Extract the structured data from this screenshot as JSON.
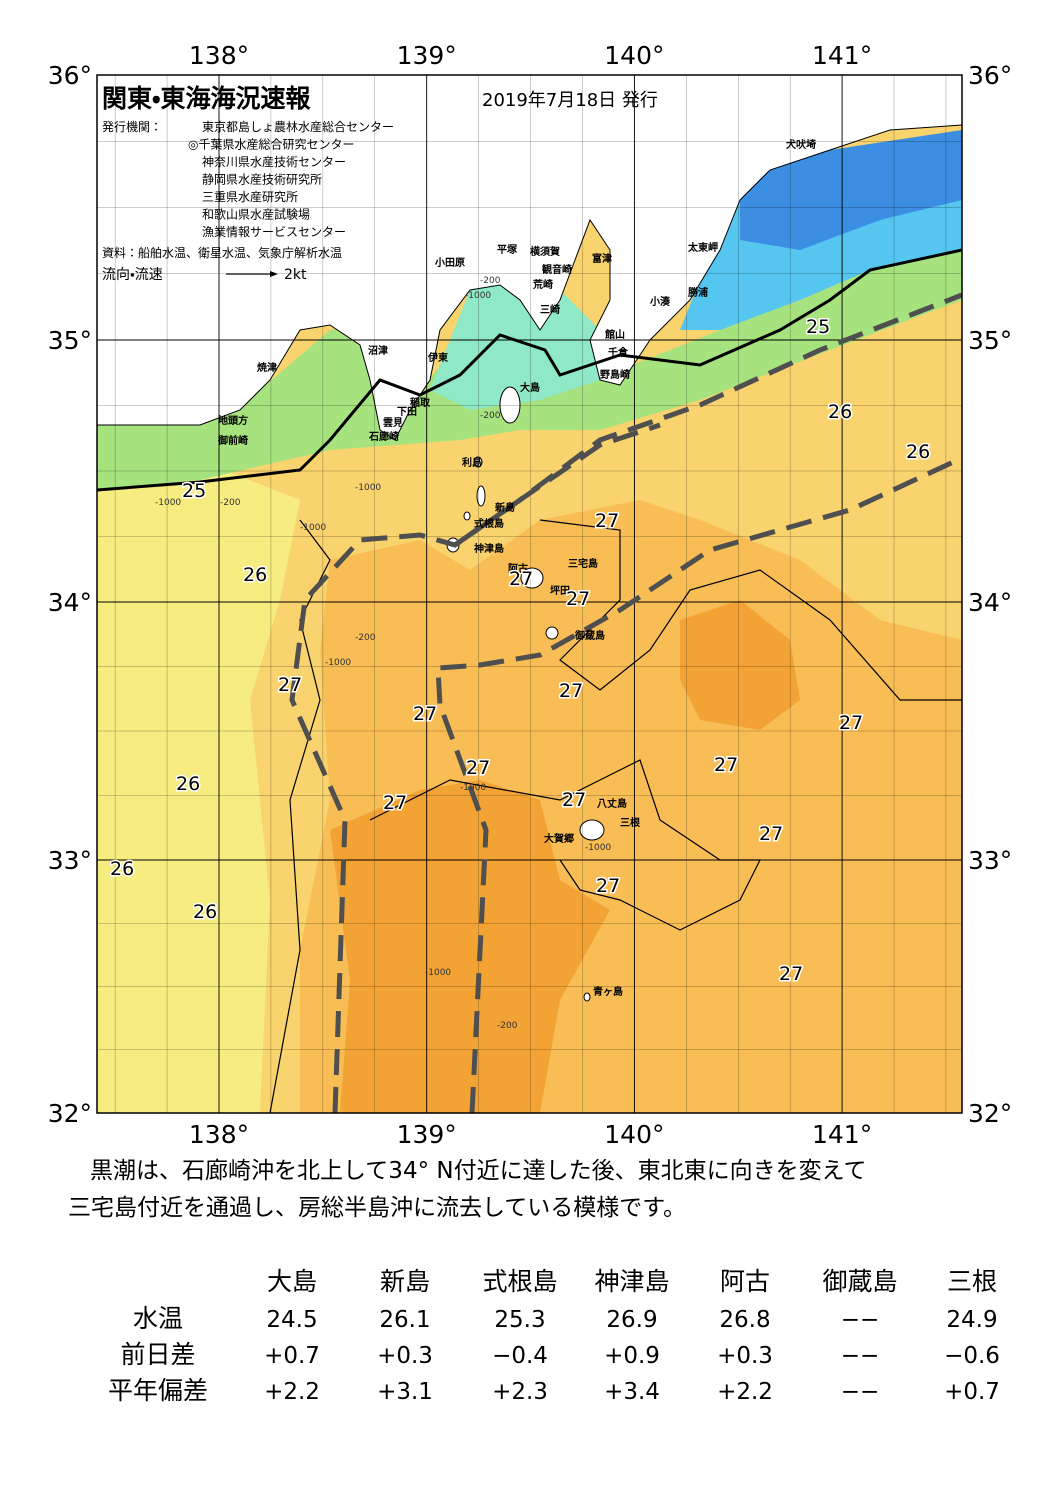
{
  "header": {
    "title": "関東・東海海況速報",
    "date": "2019年7月18日 発行",
    "issuer_label": "発行機関：",
    "issuers": [
      "東京都島しょ農林水産総合センター",
      "◎千葉県水産総合研究センター",
      "神奈川県水産技術センター",
      "静岡県水産技術研究所",
      "三重県水産研究所",
      "和歌山県水産試験場",
      "漁業情報サービスセンター"
    ],
    "source": "資料：船舶水温、衛星水温、気象庁解析水温",
    "flow_label": "流向・流速",
    "flow_scale": "2kt"
  },
  "map": {
    "lon_ticks": [
      {
        "value": 138,
        "label": "138°"
      },
      {
        "value": 139,
        "label": "139°"
      },
      {
        "value": 140,
        "label": "140°"
      },
      {
        "value": 141,
        "label": "141°"
      }
    ],
    "lat_ticks": [
      {
        "value": 36,
        "label": "36°"
      },
      {
        "value": 35,
        "label": "35°"
      },
      {
        "value": 34,
        "label": "34°"
      },
      {
        "value": 33,
        "label": "33°"
      },
      {
        "value": 32,
        "label": "32°"
      }
    ],
    "places": [
      "犬吠埼",
      "太東岬",
      "勝浦",
      "小湊",
      "富津",
      "館山",
      "千倉",
      "野島崎",
      "横須賀",
      "観音崎",
      "荒崎",
      "三崎",
      "平塚",
      "小田原",
      "沼津",
      "伊東",
      "焼津",
      "稲取",
      "下田",
      "雲見",
      "石廊崎",
      "地頭方",
      "御前崎",
      "大島",
      "利島",
      "新島",
      "式根島",
      "神津島",
      "三宅島",
      "阿古",
      "坪田",
      "御蔵島",
      "八丈島",
      "三根",
      "大賀郷",
      "青ヶ島"
    ],
    "contour_labels": [
      25,
      25,
      26,
      26,
      26,
      26,
      26,
      26,
      27,
      27,
      27,
      27,
      27,
      27,
      27,
      27,
      27,
      27,
      27,
      27,
      27,
      27
    ],
    "depth_labels": [
      -200,
      -1000,
      -1000,
      -200,
      -200,
      -1000,
      -200,
      -1000,
      -1000,
      -1000,
      -1000,
      -200,
      -1000
    ]
  },
  "description": [
    "黒潮は、石廊崎沖を北上して34° N付近に達した後、東北東に向きを変えて",
    "三宅島付近を通過し、房総半島沖に流去している模様です。"
  ],
  "table": {
    "columns": [
      "大島",
      "新島",
      "式根島",
      "神津島",
      "阿古",
      "御蔵島",
      "三根"
    ],
    "rows": [
      {
        "label": "水温",
        "cells": [
          "24.5",
          "26.1",
          "25.3",
          "26.9",
          "26.8",
          "−−",
          "24.9"
        ]
      },
      {
        "label": "前日差",
        "cells": [
          "+0.7",
          "+0.3",
          "−0.4",
          "+0.9",
          "+0.3",
          "−−",
          "−0.6"
        ]
      },
      {
        "label": "平年偏差",
        "cells": [
          "+2.2",
          "+3.1",
          "+2.3",
          "+3.4",
          "+2.2",
          "−−",
          "+0.7"
        ]
      }
    ]
  }
}
